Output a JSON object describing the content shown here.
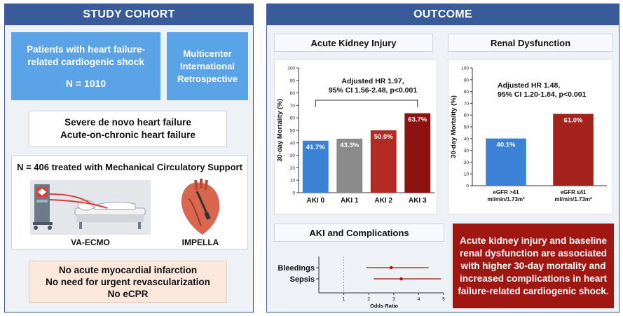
{
  "cohort": {
    "header": "STUDY COHORT",
    "patients_line1": "Patients with heart failure-",
    "patients_line2": "related cardiogenic shock",
    "patients_n": "N = 1010",
    "design_line1": "Multicenter",
    "design_line2": "International",
    "design_line3": "Retrospective",
    "hf_line1": "Severe de novo heart failure",
    "hf_line2": "Acute-on-chronic heart failure",
    "mcs_title": "N = 406 treated with Mechanical Circulatory Support",
    "device1": "VA-ECMO",
    "device2": "IMPELLA",
    "exclusion1": "No acute myocardial infarction",
    "exclusion2": "No need for urgent revascularization",
    "exclusion3": "No eCPR"
  },
  "outcome": {
    "header": "OUTCOME",
    "aki_title": "Acute Kidney Injury",
    "renal_title": "Renal Dysfunction",
    "complications_title": "AKI and Complications",
    "conclusion_line1": "Acute kidney injury and baseline",
    "conclusion_line2": "renal dysfunction are associated",
    "conclusion_line3": "with higher 30-day mortality and",
    "conclusion_line4": "increased complications in heart",
    "conclusion_line5": "failure-related cardiogenic shock."
  },
  "chart_data": [
    {
      "type": "bar",
      "ylabel": "30-day Mortality (%)",
      "ylim": [
        0,
        100
      ],
      "yticks": [
        0,
        10,
        20,
        30,
        40,
        50,
        60,
        70,
        80,
        90,
        100
      ],
      "categories": [
        "AKI 0",
        "AKI 1",
        "AKI 2",
        "AKI 3"
      ],
      "values": [
        41.7,
        43.3,
        50.0,
        63.7
      ],
      "value_labels": [
        "41.7%",
        "43.3%",
        "50.0%",
        "63.7%"
      ],
      "colors": [
        "#3b82d6",
        "#8a8a8a",
        "#b22a23",
        "#8e1210"
      ],
      "annotation_line1": "Adjusted HR 1.97,",
      "annotation_line2": "95% CI 1.56-2.48, p<0.001"
    },
    {
      "type": "bar",
      "ylabel": "30-day Mortality (%)",
      "ylim": [
        0,
        100
      ],
      "yticks": [
        0,
        10,
        20,
        30,
        40,
        50,
        60,
        70,
        80,
        90,
        100
      ],
      "categories": [
        "eGFR >41 ml/min/1.73m²",
        "eGFR ≤41 ml/min/1.73m²"
      ],
      "category_lines": [
        [
          "eGFR >41",
          "ml/min/1.73m²"
        ],
        [
          "eGFR ≤41",
          "ml/min/1.73m²"
        ]
      ],
      "values": [
        40.1,
        61.0
      ],
      "value_labels": [
        "40.1%",
        "61.0%"
      ],
      "colors": [
        "#3b82d6",
        "#a3221c"
      ],
      "annotation_line1": "Adjusted HR 1.48,",
      "annotation_line2": "95% CI 1.20-1.84, p<0.001"
    },
    {
      "type": "scatter",
      "subtype": "forest",
      "xlabel": "Odds Ratio",
      "xlim": [
        0,
        5
      ],
      "xticks": [
        1,
        2,
        3,
        4,
        5
      ],
      "reference_line": 1,
      "rows": [
        {
          "name": "Bleedings",
          "or": 2.9,
          "ci": [
            1.9,
            4.4
          ]
        },
        {
          "name": "Sepsis",
          "or": 3.3,
          "ci": [
            2.2,
            4.9
          ]
        }
      ],
      "color": "#a01712"
    }
  ]
}
